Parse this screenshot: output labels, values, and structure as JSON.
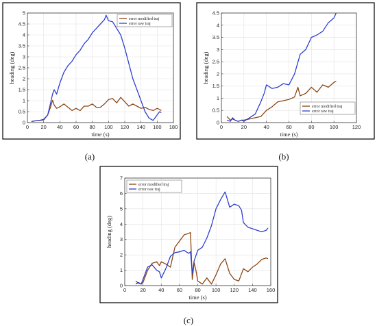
{
  "chart_data": [
    {
      "type": "line",
      "caption": "(a)",
      "xlabel": "time (s)",
      "ylabel": "heading (deg)",
      "xlim": [
        0,
        180
      ],
      "ylim": [
        0,
        5
      ],
      "xticks": [
        0,
        20,
        40,
        60,
        80,
        100,
        120,
        140,
        160,
        180
      ],
      "yticks": [
        0,
        0.5,
        1,
        1.5,
        2,
        2.5,
        3,
        3.5,
        4,
        4.5,
        5
      ],
      "grid": true,
      "legend_position": "top-right",
      "series": [
        {
          "name": "error modified traj",
          "color": "#8b4513",
          "x": [
            5,
            10,
            15,
            20,
            25,
            28,
            31,
            33,
            36,
            40,
            45,
            50,
            55,
            60,
            65,
            70,
            75,
            80,
            85,
            90,
            95,
            100,
            105,
            110,
            115,
            120,
            125,
            130,
            135,
            140,
            145,
            150,
            155,
            160,
            163,
            165
          ],
          "y": [
            0.05,
            0.08,
            0.1,
            0.12,
            0.35,
            0.65,
            1.02,
            0.8,
            0.65,
            0.72,
            0.85,
            0.7,
            0.55,
            0.65,
            0.55,
            0.75,
            0.75,
            0.85,
            0.7,
            0.7,
            0.85,
            1.05,
            1.1,
            0.9,
            1.15,
            0.95,
            0.75,
            0.85,
            0.75,
            0.65,
            0.7,
            0.6,
            0.55,
            0.65,
            0.6,
            0.55
          ]
        },
        {
          "name": "error raw traj",
          "color": "#2e3fd0",
          "x": [
            5,
            10,
            15,
            20,
            25,
            28,
            31,
            33,
            36,
            40,
            45,
            50,
            55,
            60,
            65,
            70,
            75,
            80,
            85,
            90,
            95,
            97,
            100,
            105,
            110,
            115,
            120,
            125,
            130,
            135,
            140,
            145,
            150,
            155,
            160,
            163,
            165
          ],
          "y": [
            0.05,
            0.08,
            0.1,
            0.15,
            0.35,
            0.8,
            1.3,
            1.5,
            1.3,
            1.8,
            2.3,
            2.6,
            2.8,
            3.1,
            3.3,
            3.6,
            3.8,
            4.1,
            4.3,
            4.5,
            4.7,
            4.9,
            4.65,
            4.6,
            4.3,
            4.0,
            3.4,
            2.7,
            2.0,
            1.5,
            1.0,
            0.5,
            0.2,
            0.1,
            0.35,
            0.5,
            0.45
          ]
        }
      ]
    },
    {
      "type": "line",
      "caption": "(b)",
      "xlabel": "time (s)",
      "ylabel": "heading (deg)",
      "xlim": [
        0,
        120
      ],
      "ylim": [
        0,
        4.5
      ],
      "xticks": [
        0,
        20,
        40,
        60,
        80,
        100,
        120
      ],
      "yticks": [
        0,
        0.5,
        1,
        1.5,
        2,
        2.5,
        3,
        3.5,
        4,
        4.5
      ],
      "grid": true,
      "legend_position": "bottom-right",
      "series": [
        {
          "name": "error modified traj",
          "color": "#8b4513",
          "x": [
            5,
            8,
            10,
            12,
            15,
            18,
            20,
            25,
            30,
            35,
            40,
            45,
            50,
            55,
            60,
            65,
            68,
            70,
            75,
            80,
            85,
            90,
            95,
            100,
            102
          ],
          "y": [
            0.25,
            0.1,
            0.15,
            0.1,
            0.05,
            0.1,
            0.1,
            0.15,
            0.2,
            0.25,
            0.5,
            0.65,
            0.85,
            0.9,
            0.95,
            1.05,
            1.45,
            1.1,
            1.2,
            1.45,
            1.25,
            1.55,
            1.45,
            1.65,
            1.7
          ]
        },
        {
          "name": "error raw traj",
          "color": "#2e3fd0",
          "x": [
            5,
            8,
            10,
            12,
            15,
            18,
            20,
            25,
            30,
            35,
            38,
            40,
            45,
            50,
            55,
            60,
            65,
            70,
            75,
            80,
            85,
            90,
            95,
            100,
            102
          ],
          "y": [
            0.1,
            0.05,
            0.2,
            0.1,
            0.05,
            0.1,
            0.05,
            0.2,
            0.35,
            0.85,
            1.2,
            1.55,
            1.4,
            1.45,
            1.6,
            1.55,
            2.0,
            2.8,
            3.0,
            3.5,
            3.6,
            3.75,
            4.1,
            4.3,
            4.5
          ]
        }
      ]
    },
    {
      "type": "line",
      "caption": "(c)",
      "xlabel": "time (s)",
      "ylabel": "heading (deg)",
      "xlim": [
        0,
        160
      ],
      "ylim": [
        0,
        7
      ],
      "xticks": [
        0,
        20,
        40,
        60,
        80,
        100,
        120,
        140,
        160
      ],
      "yticks": [
        0,
        1,
        2,
        3,
        4,
        5,
        6,
        7
      ],
      "grid": true,
      "legend_position": "top-left",
      "series": [
        {
          "name": "error modified traj",
          "color": "#8b4513",
          "x": [
            12,
            15,
            18,
            20,
            25,
            30,
            35,
            38,
            40,
            45,
            50,
            55,
            60,
            65,
            70,
            72,
            74,
            76,
            78,
            80,
            85,
            90,
            95,
            100,
            105,
            110,
            115,
            120,
            125,
            130,
            135,
            140,
            145,
            150,
            155,
            157
          ],
          "y": [
            0.3,
            0.15,
            0.1,
            0.2,
            1.0,
            1.45,
            1.55,
            1.3,
            1.55,
            1.4,
            1.2,
            2.5,
            2.9,
            3.3,
            3.4,
            3.45,
            0.4,
            1.5,
            1.0,
            0.3,
            0.1,
            0.5,
            0.1,
            0.7,
            1.4,
            1.75,
            0.8,
            0.4,
            0.3,
            1.1,
            0.9,
            1.2,
            1.4,
            1.7,
            1.8,
            1.75
          ]
        },
        {
          "name": "error raw traj",
          "color": "#2e3fd0",
          "x": [
            12,
            15,
            18,
            20,
            25,
            30,
            35,
            38,
            40,
            45,
            50,
            55,
            60,
            65,
            70,
            72,
            74,
            76,
            80,
            85,
            90,
            95,
            100,
            105,
            110,
            115,
            120,
            125,
            128,
            130,
            135,
            140,
            145,
            150,
            155,
            157
          ],
          "y": [
            0.1,
            0.2,
            0.1,
            0.4,
            1.2,
            1.35,
            1.0,
            0.9,
            0.5,
            1.1,
            1.9,
            2.15,
            2.2,
            2.3,
            2.1,
            2.2,
            0.8,
            1.6,
            2.3,
            2.5,
            3.1,
            3.9,
            5.0,
            5.6,
            6.1,
            5.1,
            5.3,
            5.2,
            4.9,
            4.1,
            3.8,
            3.7,
            3.6,
            3.5,
            3.6,
            3.75
          ]
        }
      ]
    }
  ]
}
